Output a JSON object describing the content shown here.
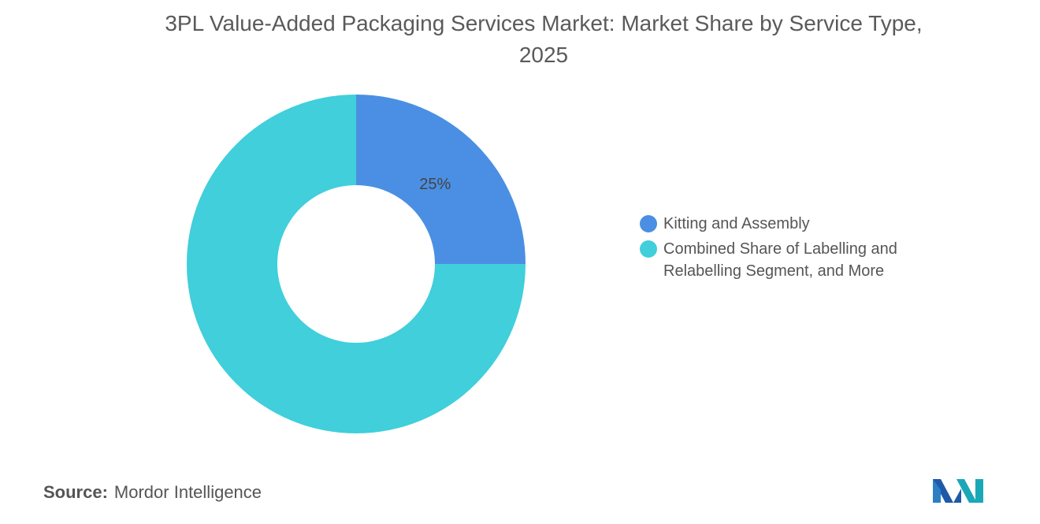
{
  "chart_data": {
    "type": "donut",
    "title": "3PL Value-Added Packaging Services Market: Market Share by Service Type, 2025",
    "categories": [
      "Kitting and Assembly",
      "Combined Share of Labelling and Relabelling Segment, and More"
    ],
    "values": [
      25,
      75
    ],
    "value_labels": [
      "25%",
      null
    ],
    "colors": [
      "#4a8fe3",
      "#40cfdb"
    ],
    "source": {
      "label": "Source:",
      "text": "Mordor Intelligence"
    }
  }
}
